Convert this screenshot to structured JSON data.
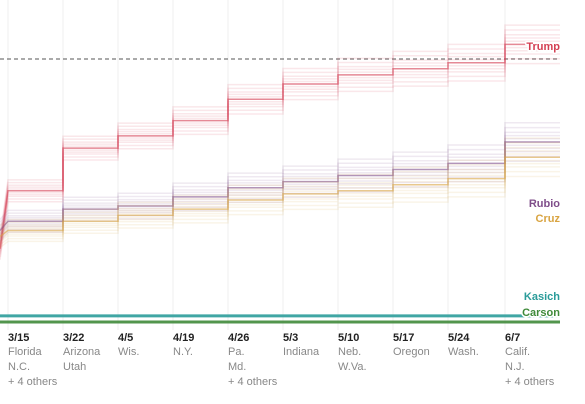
{
  "chart_data": {
    "type": "line",
    "categories": [
      "3/15",
      "3/22",
      "4/5",
      "4/19",
      "4/26",
      "5/3",
      "5/10",
      "5/17",
      "5/24",
      "6/7"
    ],
    "states": [
      [
        "Florida",
        "N.C.",
        "+ 4 others"
      ],
      [
        "Arizona",
        "Utah"
      ],
      [
        "Wis."
      ],
      [
        "N.Y."
      ],
      [
        "Pa.",
        "Md.",
        "+ 4 others"
      ],
      [
        "Indiana"
      ],
      [
        "Neb.",
        "W.Va."
      ],
      [
        "Oregon"
      ],
      [
        "Wash."
      ],
      [
        "Calif.",
        "N.J.",
        "+ 4 others"
      ]
    ],
    "threshold_line": "dashed",
    "series": [
      {
        "name": "Trump",
        "color": "#d43d51",
        "values": [
          0.44,
          0.58,
          0.62,
          0.67,
          0.74,
          0.79,
          0.82,
          0.84,
          0.86,
          0.92
        ],
        "start": 0.25
      },
      {
        "name": "Rubio",
        "color": "#7f4e8a",
        "values": [
          0.34,
          0.38,
          0.39,
          0.42,
          0.45,
          0.47,
          0.49,
          0.51,
          0.53,
          0.6
        ],
        "start": 0.31
      },
      {
        "name": "Cruz",
        "color": "#d9a441",
        "values": [
          0.31,
          0.34,
          0.36,
          0.38,
          0.41,
          0.43,
          0.44,
          0.46,
          0.48,
          0.55
        ],
        "start": 0.29
      },
      {
        "name": "Kasich",
        "color": "#2b9c9a",
        "values": [
          0.03,
          0.03,
          0.03,
          0.03,
          0.03,
          0.03,
          0.03,
          0.03,
          0.03,
          0.03
        ],
        "start": 0.03
      },
      {
        "name": "Carson",
        "color": "#3f8a3a",
        "values": [
          0.01,
          0.01,
          0.01,
          0.01,
          0.01,
          0.01,
          0.01,
          0.01,
          0.01,
          0.01
        ],
        "start": 0.01
      }
    ],
    "grid": true,
    "legend": "right, at line ends"
  }
}
